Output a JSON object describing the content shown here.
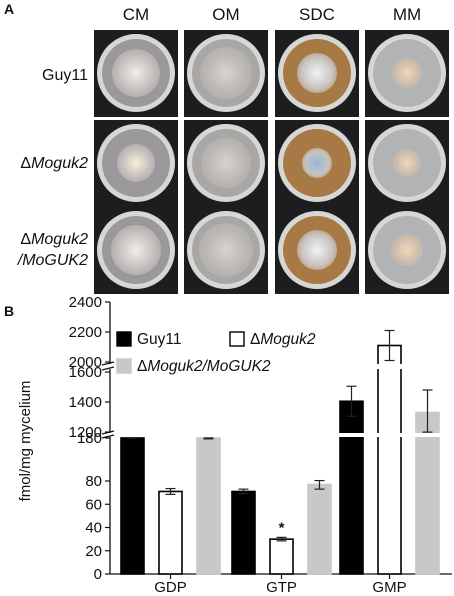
{
  "panel_a": {
    "letter": "A",
    "columns": [
      "CM",
      "OM",
      "SDC",
      "MM"
    ],
    "rows": [
      {
        "prefix": "",
        "name": "Guy11",
        "suffix": ""
      },
      {
        "prefix": "Δ",
        "name": "Moguk2",
        "suffix": ""
      },
      {
        "prefix": "Δ",
        "name": "Moguk2",
        "suffix": "/MoGUK2"
      }
    ],
    "plate_colors": {
      "CM": {
        "medium": "#9a989b",
        "colony": "#c2bcbb",
        "center": "#f0ece6"
      },
      "OM": {
        "medium": "#a9a7a6",
        "colony": "#b9b6b3",
        "center": "#d8d3cf"
      },
      "SDC": {
        "medium": "#a77a45",
        "colony": "#c9c3bf",
        "center": "#f0f2f4"
      },
      "MM": {
        "medium": "#b2b3b4",
        "colony": "#cbbcad",
        "center": "#f2d7b3"
      },
      "SDC_mutant_center": "#93b7d4",
      "CM_mutant_center": "#f7efd6"
    }
  },
  "panel_b": {
    "letter": "B",
    "chart_data": {
      "type": "bar",
      "ylabel": "fmol/mg mycelium",
      "categories": [
        "GDP",
        "GTP",
        "GMP"
      ],
      "series": [
        {
          "name": "Guy11",
          "prefix": "",
          "label": "Guy11",
          "color": "#000000",
          "values": [
            186,
            71,
            1405
          ],
          "errors": [
            4,
            2,
            100
          ]
        },
        {
          "name": "ΔMoguk2",
          "prefix": "Δ",
          "label": "Moguk2",
          "color": "#ffffff",
          "values": [
            71,
            30,
            2110
          ],
          "errors": [
            2.5,
            1.5,
            100
          ]
        },
        {
          "name": "ΔMoguk2/MoGUK2",
          "prefix": "Δ",
          "label": "Moguk2/MoGUK2",
          "color": "#c8c8c8",
          "values": [
            182,
            77,
            1330
          ],
          "errors": [
            4,
            4,
            150
          ]
        }
      ],
      "significance": [
        "",
        "*",
        ""
      ],
      "significance_series": "ΔMoguk2",
      "y_axis_segments": [
        {
          "range": [
            0,
            180
          ],
          "ticks": [
            0,
            20,
            40,
            60,
            80,
            180
          ]
        },
        {
          "range": [
            1200,
            2400
          ],
          "ticks": [
            1200,
            1400,
            1600,
            2000,
            2200,
            2400
          ]
        }
      ],
      "tick_labels": [
        "0",
        "20",
        "40",
        "60",
        "80",
        "180",
        "1200",
        "1400",
        "1600",
        "2000",
        "2200",
        "2400"
      ],
      "y_scale": "broken",
      "legend_placement": "top-left"
    }
  }
}
